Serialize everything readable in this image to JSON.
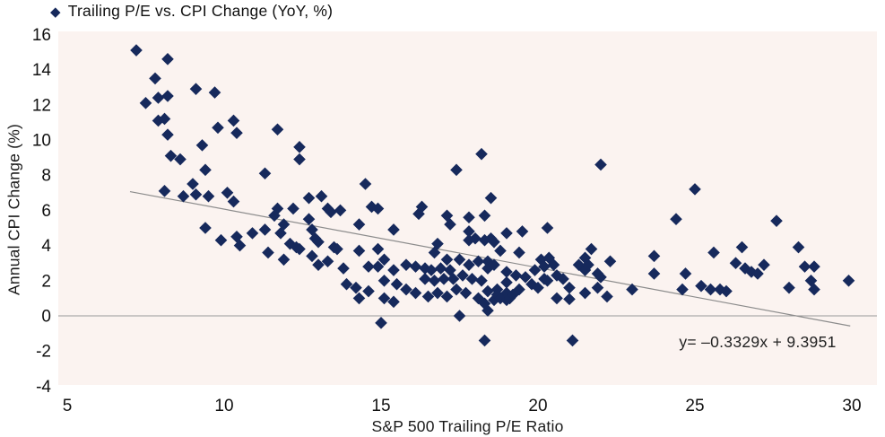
{
  "legend": {
    "label": "Trailing P/E vs. CPI Change (YoY, %)",
    "marker_icon": "diamond-icon"
  },
  "axes": {
    "x": {
      "title": "S&P 500 Trailing P/E Ratio",
      "ticks": [
        "5",
        "10",
        "15",
        "20",
        "25",
        "30"
      ]
    },
    "y": {
      "title": "Annual CPI Change (%)",
      "ticks": [
        "16",
        "14",
        "12",
        "10",
        "8",
        "6",
        "4",
        "2",
        "0",
        "-2",
        "-4"
      ]
    }
  },
  "trendline": {
    "equation_label": "y= –0.3329x + 9.3951",
    "slope": -0.3329,
    "intercept": 9.3951,
    "x_start": 7.0,
    "x_end": 29.95
  },
  "colors": {
    "marker": "#16295c",
    "plot_background": "#fbf3f0",
    "trendline": "#8c8c8c",
    "zero_line": "#9a9a9a",
    "text": "#1a1a1a"
  },
  "chart_data": {
    "type": "scatter",
    "title": "Trailing P/E vs. CPI Change (YoY, %)",
    "xlabel": "S&P 500 Trailing P/E Ratio",
    "ylabel": "Annual CPI Change (%)",
    "xlim": [
      5,
      31.1
    ],
    "ylim": [
      -4,
      16
    ],
    "x_ticks": [
      5,
      10,
      15,
      20,
      25,
      30
    ],
    "y_ticks": [
      16,
      14,
      12,
      10,
      8,
      6,
      4,
      2,
      0,
      -2,
      -4
    ],
    "grid": "zero-line-only",
    "legend_position": "top-left",
    "marker": "diamond",
    "trendline": {
      "slope": -0.3329,
      "intercept": 9.3951,
      "label": "y= –0.3329x + 9.3951"
    },
    "points": [
      [
        7.2,
        15.1
      ],
      [
        8.2,
        14.6
      ],
      [
        7.8,
        13.5
      ],
      [
        9.1,
        12.9
      ],
      [
        9.7,
        12.7
      ],
      [
        7.5,
        12.1
      ],
      [
        7.9,
        12.4
      ],
      [
        8.2,
        12.5
      ],
      [
        7.9,
        11.1
      ],
      [
        8.1,
        11.2
      ],
      [
        8.2,
        10.3
      ],
      [
        9.8,
        10.7
      ],
      [
        10.3,
        11.1
      ],
      [
        10.4,
        10.4
      ],
      [
        11.7,
        10.6
      ],
      [
        8.3,
        9.1
      ],
      [
        8.6,
        8.9
      ],
      [
        9.3,
        9.7
      ],
      [
        9.4,
        8.3
      ],
      [
        12.4,
        9.6
      ],
      [
        12.4,
        8.9
      ],
      [
        11.3,
        8.1
      ],
      [
        9.0,
        7.5
      ],
      [
        8.1,
        7.1
      ],
      [
        8.7,
        6.8
      ],
      [
        9.1,
        6.9
      ],
      [
        9.5,
        6.8
      ],
      [
        10.1,
        7.0
      ],
      [
        10.3,
        6.5
      ],
      [
        11.7,
        6.1
      ],
      [
        12.2,
        6.1
      ],
      [
        12.7,
        6.7
      ],
      [
        13.1,
        6.8
      ],
      [
        13.3,
        6.1
      ],
      [
        9.4,
        5.0
      ],
      [
        9.9,
        4.3
      ],
      [
        10.4,
        4.5
      ],
      [
        10.5,
        4.0
      ],
      [
        10.9,
        4.7
      ],
      [
        11.3,
        4.9
      ],
      [
        11.4,
        3.6
      ],
      [
        11.6,
        5.7
      ],
      [
        11.8,
        4.7
      ],
      [
        11.9,
        5.2
      ],
      [
        11.9,
        3.2
      ],
      [
        12.1,
        4.1
      ],
      [
        12.3,
        3.9
      ],
      [
        12.4,
        3.8
      ],
      [
        12.7,
        5.5
      ],
      [
        12.8,
        4.9
      ],
      [
        12.9,
        4.4
      ],
      [
        13.0,
        4.2
      ],
      [
        12.8,
        3.4
      ],
      [
        13.0,
        2.9
      ],
      [
        13.3,
        3.1
      ],
      [
        13.5,
        3.9
      ],
      [
        18.2,
        9.2
      ],
      [
        17.4,
        8.3
      ],
      [
        14.5,
        7.5
      ],
      [
        18.5,
        6.7
      ],
      [
        22.0,
        8.6
      ],
      [
        16.3,
        6.2
      ],
      [
        13.7,
        6.0
      ],
      [
        14.7,
        6.2
      ],
      [
        25.0,
        7.2
      ],
      [
        13.4,
        5.9
      ],
      [
        14.9,
        6.1
      ],
      [
        16.2,
        5.8
      ],
      [
        17.1,
        5.7
      ],
      [
        17.2,
        5.2
      ],
      [
        17.8,
        5.6
      ],
      [
        18.3,
        5.7
      ],
      [
        19.0,
        4.7
      ],
      [
        19.5,
        4.8
      ],
      [
        20.3,
        5.0
      ],
      [
        14.3,
        5.2
      ],
      [
        15.4,
        4.9
      ],
      [
        17.8,
        4.8
      ],
      [
        17.8,
        4.3
      ],
      [
        18.0,
        4.4
      ],
      [
        18.3,
        4.3
      ],
      [
        18.5,
        4.4
      ],
      [
        18.6,
        4.2
      ],
      [
        16.8,
        4.1
      ],
      [
        18.8,
        3.7
      ],
      [
        19.4,
        3.6
      ],
      [
        15.1,
        3.2
      ],
      [
        15.4,
        2.6
      ],
      [
        15.8,
        2.9
      ],
      [
        16.1,
        2.8
      ],
      [
        16.4,
        2.7
      ],
      [
        16.6,
        2.6
      ],
      [
        16.9,
        2.7
      ],
      [
        17.2,
        2.6
      ],
      [
        16.7,
        3.6
      ],
      [
        17.1,
        3.2
      ],
      [
        17.5,
        3.2
      ],
      [
        17.8,
        2.9
      ],
      [
        18.1,
        3.1
      ],
      [
        18.4,
        3.1
      ],
      [
        18.4,
        2.7
      ],
      [
        18.6,
        2.9
      ],
      [
        16.4,
        2.1
      ],
      [
        16.7,
        2.0
      ],
      [
        17.0,
        2.1
      ],
      [
        17.3,
        2.1
      ],
      [
        17.6,
        2.3
      ],
      [
        17.9,
        2.1
      ],
      [
        18.2,
        2.0
      ],
      [
        15.1,
        2.0
      ],
      [
        15.5,
        1.8
      ],
      [
        15.8,
        1.5
      ],
      [
        16.1,
        1.3
      ],
      [
        16.5,
        1.1
      ],
      [
        16.8,
        1.3
      ],
      [
        17.1,
        1.1
      ],
      [
        17.4,
        1.5
      ],
      [
        17.7,
        1.3
      ],
      [
        18.1,
        1.0
      ],
      [
        18.4,
        1.4
      ],
      [
        15.1,
        1.0
      ],
      [
        15.4,
        0.8
      ],
      [
        17.5,
        0.0
      ],
      [
        13.8,
        2.7
      ],
      [
        14.6,
        2.8
      ],
      [
        14.9,
        2.8
      ],
      [
        13.6,
        3.8
      ],
      [
        14.3,
        3.7
      ],
      [
        14.9,
        3.8
      ],
      [
        13.9,
        1.8
      ],
      [
        14.2,
        1.6
      ],
      [
        14.3,
        1.0
      ],
      [
        14.6,
        1.4
      ],
      [
        15.0,
        -0.4
      ],
      [
        19.0,
        2.5
      ],
      [
        19.3,
        2.3
      ],
      [
        19.0,
        1.9
      ],
      [
        18.7,
        1.5
      ],
      [
        19.0,
        1.3
      ],
      [
        19.4,
        1.5
      ],
      [
        19.6,
        2.2
      ],
      [
        19.9,
        2.6
      ],
      [
        20.1,
        3.2
      ],
      [
        20.35,
        3.3
      ],
      [
        20.2,
        2.8
      ],
      [
        20.5,
        2.9
      ],
      [
        19.8,
        1.8
      ],
      [
        20.0,
        1.6
      ],
      [
        20.3,
        2.0
      ],
      [
        20.6,
        2.3
      ],
      [
        20.8,
        2.1
      ],
      [
        21.3,
        2.9
      ],
      [
        21.5,
        3.3
      ],
      [
        21.7,
        3.8
      ],
      [
        21.5,
        2.6
      ],
      [
        21.6,
        2.9
      ],
      [
        21.0,
        1.6
      ],
      [
        21.0,
        0.95
      ],
      [
        21.5,
        1.3
      ],
      [
        20.2,
        2.1
      ],
      [
        20.6,
        1.0
      ],
      [
        21.9,
        1.6
      ],
      [
        22.2,
        1.1
      ],
      [
        22.0,
        2.2
      ],
      [
        21.9,
        2.4
      ],
      [
        22.3,
        3.1
      ],
      [
        21.1,
        -1.4
      ],
      [
        18.3,
        -1.4
      ],
      [
        18.4,
        0.3
      ],
      [
        18.3,
        0.7
      ],
      [
        18.6,
        0.9
      ],
      [
        18.7,
        1.2
      ],
      [
        18.8,
        1.0
      ],
      [
        19.0,
        0.9
      ],
      [
        19.1,
        1.0
      ],
      [
        19.2,
        1.2
      ],
      [
        23.0,
        1.5
      ],
      [
        23.7,
        3.4
      ],
      [
        23.7,
        2.4
      ],
      [
        24.7,
        2.4
      ],
      [
        24.6,
        1.5
      ],
      [
        25.2,
        1.7
      ],
      [
        25.5,
        1.5
      ],
      [
        25.8,
        1.5
      ],
      [
        26.0,
        1.4
      ],
      [
        25.6,
        3.6
      ],
      [
        26.5,
        3.9
      ],
      [
        26.3,
        3.0
      ],
      [
        26.6,
        2.7
      ],
      [
        26.8,
        2.5
      ],
      [
        27.0,
        2.4
      ],
      [
        27.2,
        2.9
      ],
      [
        24.4,
        5.5
      ],
      [
        27.6,
        5.4
      ],
      [
        28.0,
        1.6
      ],
      [
        28.3,
        3.9
      ],
      [
        28.5,
        2.8
      ],
      [
        28.8,
        2.8
      ],
      [
        28.7,
        2.0
      ],
      [
        28.8,
        1.5
      ],
      [
        29.9,
        2.0
      ]
    ]
  }
}
